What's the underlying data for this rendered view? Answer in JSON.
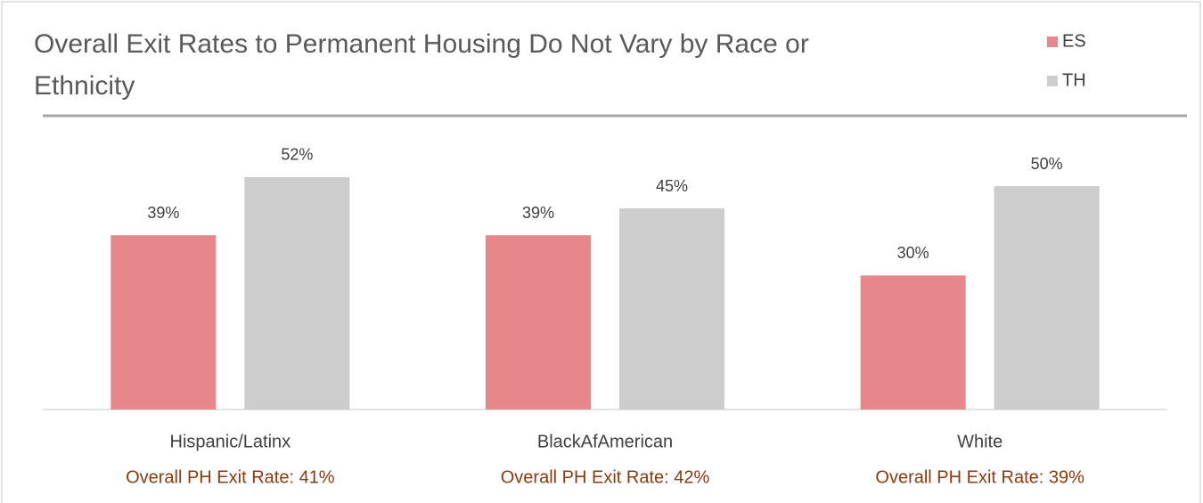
{
  "chart_data": {
    "type": "bar",
    "title": "Overall Exit Rates to Permanent Housing Do Not Vary by Race or Ethnicity",
    "categories": [
      "Hispanic/Latinx",
      "BlackAfAmerican",
      "White"
    ],
    "series": [
      {
        "name": "ES",
        "color": "#e8878b",
        "values": [
          39,
          39,
          30
        ],
        "value_labels": [
          "39%",
          "39%",
          "30%"
        ]
      },
      {
        "name": "TH",
        "color": "#cdcdcd",
        "values": [
          52,
          45,
          50
        ],
        "value_labels": [
          "52%",
          "45%",
          "50%"
        ]
      }
    ],
    "annotations": [
      "Overall PH Exit Rate: 41%",
      "Overall PH Exit Rate: 42%",
      "Overall PH Exit Rate: 39%"
    ]
  }
}
